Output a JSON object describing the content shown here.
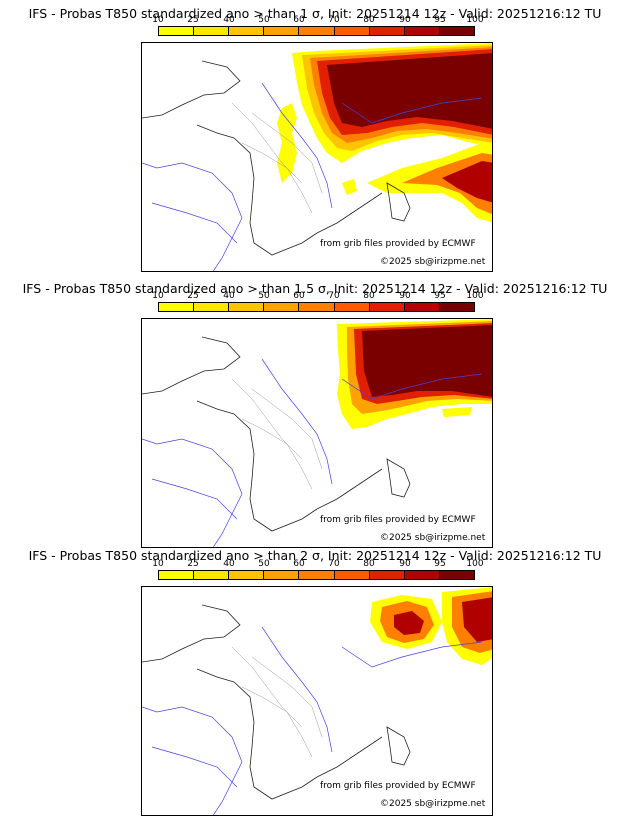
{
  "colorbar": {
    "ticks": [
      "10",
      "25",
      "40",
      "50",
      "60",
      "70",
      "80",
      "90",
      "95",
      "100"
    ],
    "colors": [
      "#ffff00",
      "#ffe600",
      "#ffc400",
      "#ffa200",
      "#ff8000",
      "#ff5a00",
      "#e02000",
      "#b00000",
      "#7a0000"
    ]
  },
  "panels": [
    {
      "title": "IFS - Probas T850  standardized ano > than 1 σ, Init: 20251214 12z - Valid: 20251216:12 TU",
      "credit_source": "from grib files provided by ECMWF",
      "credit_copyright": "©2025 sb@irizpme.net"
    },
    {
      "title": "IFS - Probas T850  standardized ano > than 1.5 σ, Init: 20251214 12z - Valid: 20251216:12 TU",
      "credit_source": "from grib files provided by ECMWF",
      "credit_copyright": "©2025 sb@irizpme.net"
    },
    {
      "title": "IFS - Probas T850  standardized ano > than 2 σ, Init: 20251214 12z - Valid: 20251216:12 TU",
      "credit_source": "from grib files provided by ECMWF",
      "credit_copyright": "©2025 sb@irizpme.net"
    }
  ]
}
